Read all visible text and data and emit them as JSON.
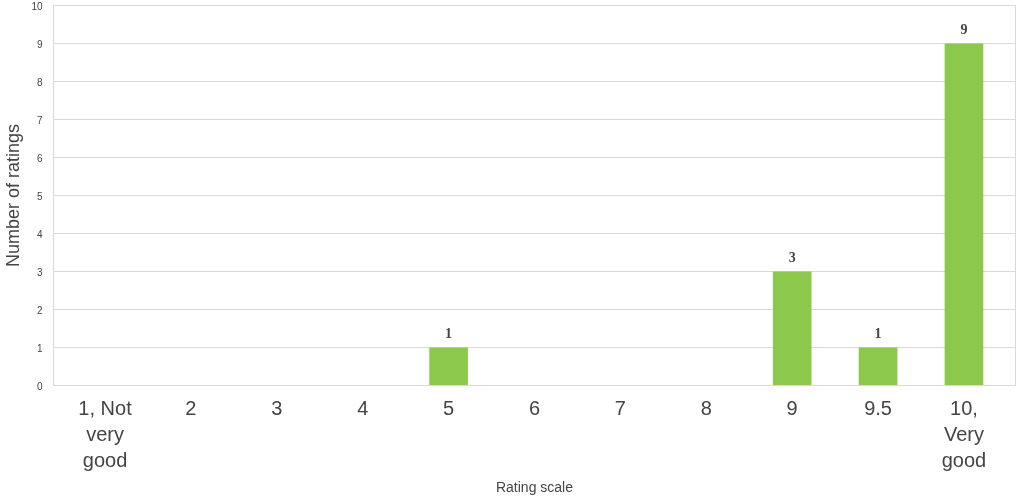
{
  "chart_data": {
    "type": "bar",
    "xlabel": "Rating scale",
    "ylabel": "Number of ratings",
    "categories": [
      "1, Not very good",
      "2",
      "3",
      "4",
      "5",
      "6",
      "7",
      "8",
      "9",
      "9.5",
      "10, Very good"
    ],
    "values": [
      0,
      0,
      0,
      0,
      1,
      0,
      0,
      0,
      3,
      1,
      9
    ],
    "value_labels": [
      null,
      null,
      null,
      null,
      "1",
      null,
      null,
      null,
      "3",
      "1",
      "9"
    ],
    "color": "#8cc84b",
    "ylim": [
      0,
      10
    ],
    "yticks": [
      0,
      1,
      2,
      3,
      4,
      5,
      6,
      7,
      8,
      9,
      10
    ],
    "grid": "y"
  }
}
